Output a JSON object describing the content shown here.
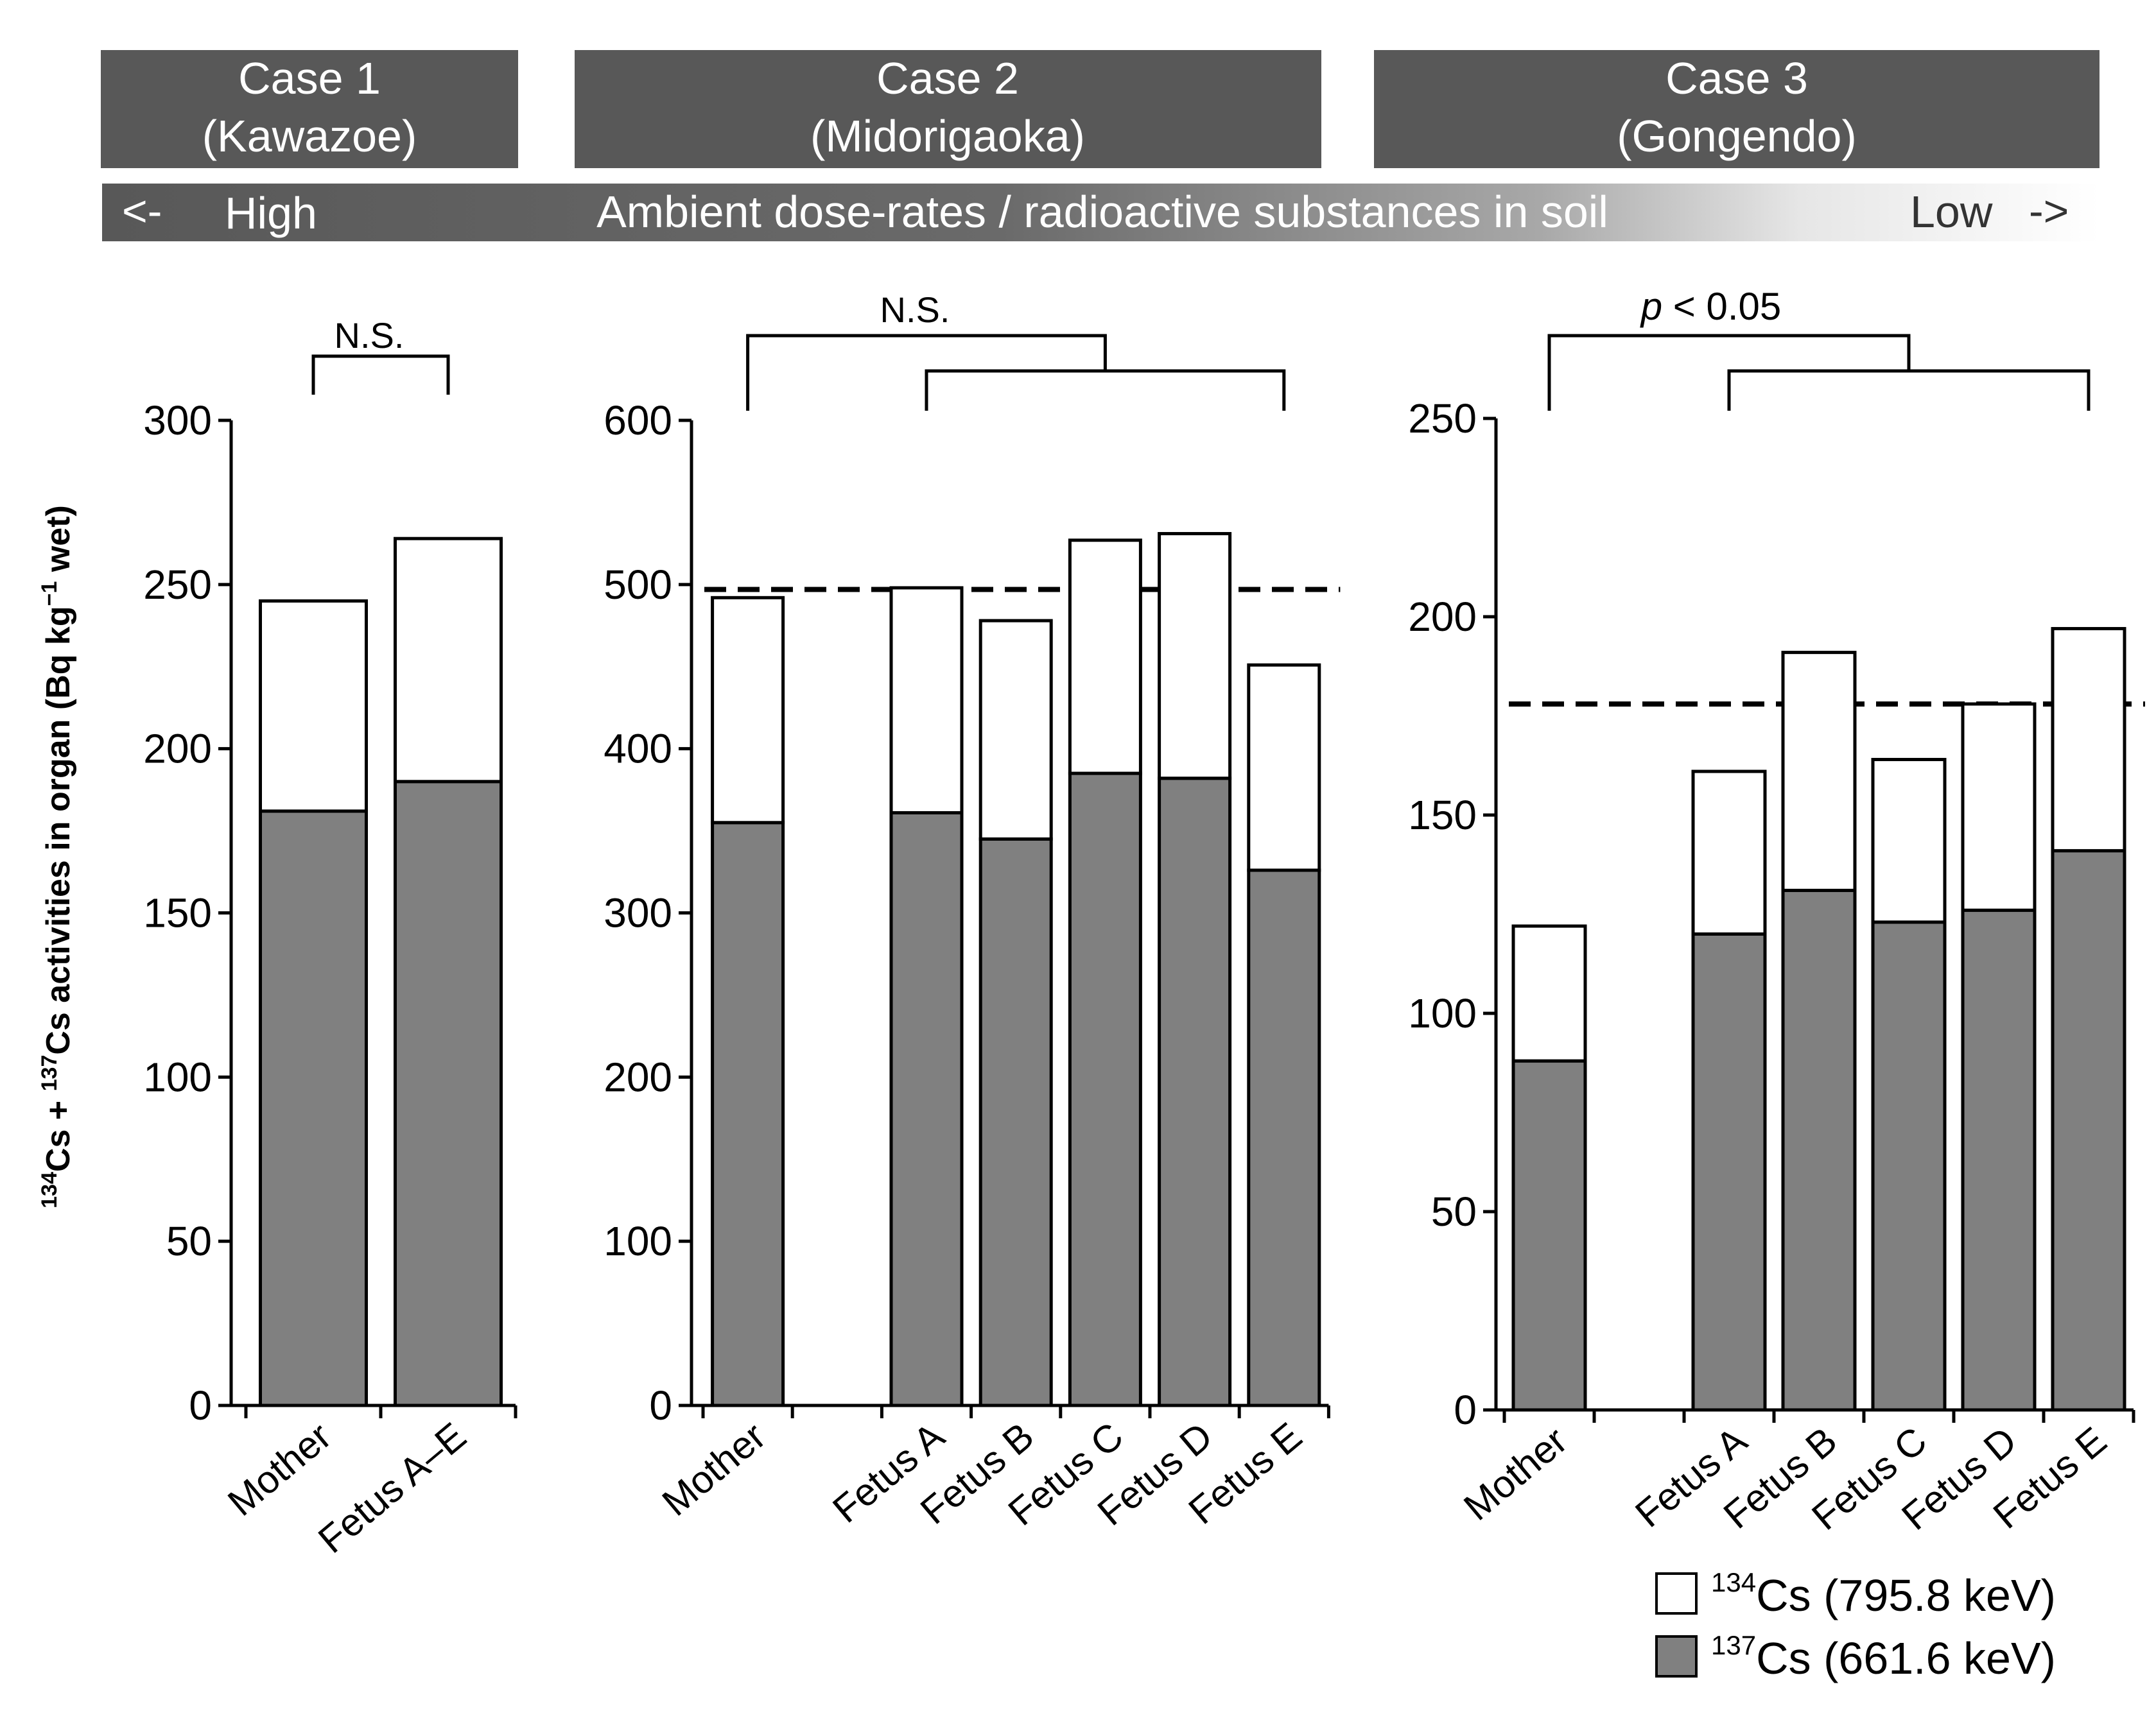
{
  "header": {
    "cases": [
      {
        "title": "Case 1",
        "subtitle": "(Kawazoe)"
      },
      {
        "title": "Case 2",
        "subtitle": "(Midorigaoka)"
      },
      {
        "title": "Case 3",
        "subtitle": "(Gongendo)"
      }
    ],
    "gradient_bar": {
      "left_arrow": "<-",
      "left_label": "High",
      "center_label": "Ambient dose-rates / radioactive substances in soil",
      "right_label": "Low",
      "right_arrow": "->"
    }
  },
  "y_axis_label": {
    "sup1": "134",
    "part1": "Cs + ",
    "sup2": "137",
    "part2": "Cs activities in organ (Bq kg",
    "sup3": "−1",
    "part3": " wet)"
  },
  "legend": {
    "items": [
      {
        "sup": "134",
        "label": "Cs (795.8 keV)",
        "color": "#ffffff"
      },
      {
        "sup": "137",
        "label": "Cs (661.6 keV)",
        "color": "#808080"
      }
    ]
  },
  "colors": {
    "header_box": "#585858",
    "cs137_fill": "#808080",
    "cs134_fill": "#ffffff",
    "stroke": "#000000"
  },
  "chart_data": [
    {
      "type": "bar",
      "stacked": true,
      "panel": "Case 1",
      "categories": [
        "Mother",
        "Fetus A–E"
      ],
      "series": [
        {
          "name": "137Cs (661.6 keV)",
          "values": [
            181,
            190
          ]
        },
        {
          "name": "134Cs (795.8 keV)",
          "values": [
            64,
            74
          ]
        }
      ],
      "ylim": [
        0,
        300
      ],
      "yticks": [
        0,
        50,
        100,
        150,
        200,
        250,
        300
      ],
      "significance": {
        "label": "N.S."
      },
      "reference_line": null
    },
    {
      "type": "bar",
      "stacked": true,
      "panel": "Case 2",
      "categories": [
        "Mother",
        "",
        "Fetus A",
        "Fetus B",
        "Fetus C",
        "Fetus D",
        "Fetus E"
      ],
      "series": [
        {
          "name": "137Cs (661.6 keV)",
          "values": [
            355,
            null,
            361,
            345,
            385,
            382,
            326
          ]
        },
        {
          "name": "134Cs (795.8 keV)",
          "values": [
            137,
            null,
            137,
            133,
            142,
            149,
            125
          ]
        }
      ],
      "ylim": [
        0,
        600
      ],
      "yticks": [
        0,
        100,
        200,
        300,
        400,
        500,
        600
      ],
      "significance": {
        "label": "N.S."
      },
      "reference_line": 497
    },
    {
      "type": "bar",
      "stacked": true,
      "panel": "Case 3",
      "categories": [
        "Mother",
        "",
        "Fetus A",
        "Fetus B",
        "Fetus C",
        "Fetus D",
        "Fetus E"
      ],
      "series": [
        {
          "name": "137Cs (661.6 keV)",
          "values": [
            88,
            null,
            120,
            131,
            123,
            126,
            141
          ]
        },
        {
          "name": "134Cs (795.8 keV)",
          "values": [
            34,
            null,
            41,
            60,
            41,
            52,
            56
          ]
        }
      ],
      "ylim": [
        0,
        250
      ],
      "yticks": [
        0,
        50,
        100,
        150,
        200,
        250
      ],
      "significance": {
        "label_italic": "p",
        "label_rest": " < 0.05"
      },
      "reference_line": 178
    }
  ]
}
